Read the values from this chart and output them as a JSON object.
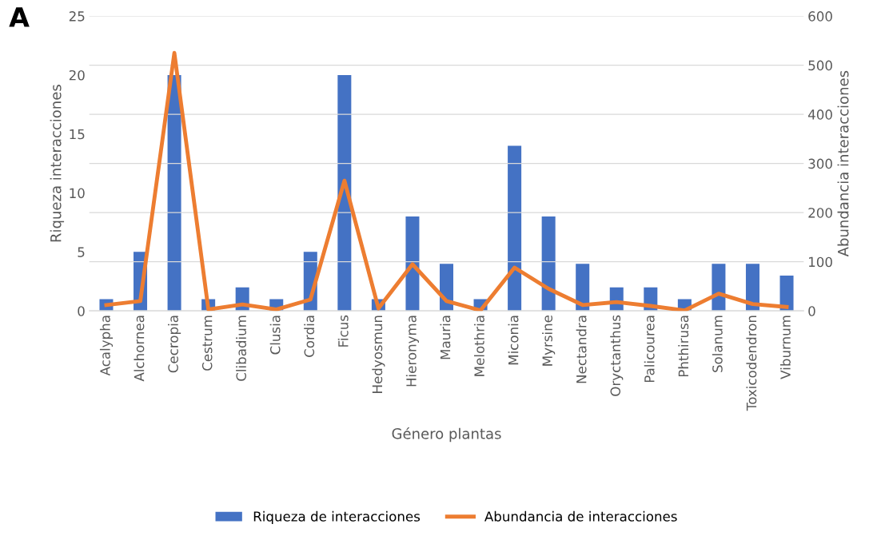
{
  "chart_data": {
    "type": "bar",
    "title": "A",
    "xlabel": "Género plantas",
    "ylabel": "Riqueza interacciones",
    "y2label": "Abundancia interacciones",
    "categories": [
      "Acalypha",
      "Alchornea",
      "Cecropia",
      "Cestrum",
      "Clibadium",
      "Clusia",
      "Cordia",
      "Ficus",
      "Hedyosmun",
      "Hieronyma",
      "Mauria",
      "Melothria",
      "Miconia",
      "Myrsine",
      "Nectandra",
      "Oryctanthus",
      "Palicourea",
      "Phthirusa",
      "Solanum",
      "Toxicodendron",
      "Viburnum"
    ],
    "series": [
      {
        "name": "Riqueza de interacciones",
        "color": "#4472c4",
        "values": [
          1,
          5,
          20,
          1,
          2,
          1,
          5,
          20,
          1,
          8,
          4,
          1,
          14,
          8,
          4,
          2,
          2,
          1,
          4,
          4,
          3
        ]
      },
      {
        "name": "Abundancia de interacciones",
        "type": "line",
        "axis": "y2",
        "color": "#ed7d31",
        "values": [
          12,
          20,
          525,
          3,
          13,
          3,
          23,
          265,
          5,
          95,
          20,
          1,
          88,
          45,
          12,
          18,
          10,
          1,
          35,
          14,
          8
        ]
      }
    ],
    "ylim": [
      0,
      25
    ],
    "yticks": [
      0,
      5,
      10,
      15,
      20,
      25
    ],
    "y2lim": [
      0,
      600
    ],
    "y2ticks": [
      0,
      100,
      200,
      300,
      400,
      500,
      600
    ],
    "grid": "y",
    "legend": "bottom",
    "marker": "none",
    "line_style": "solid"
  }
}
